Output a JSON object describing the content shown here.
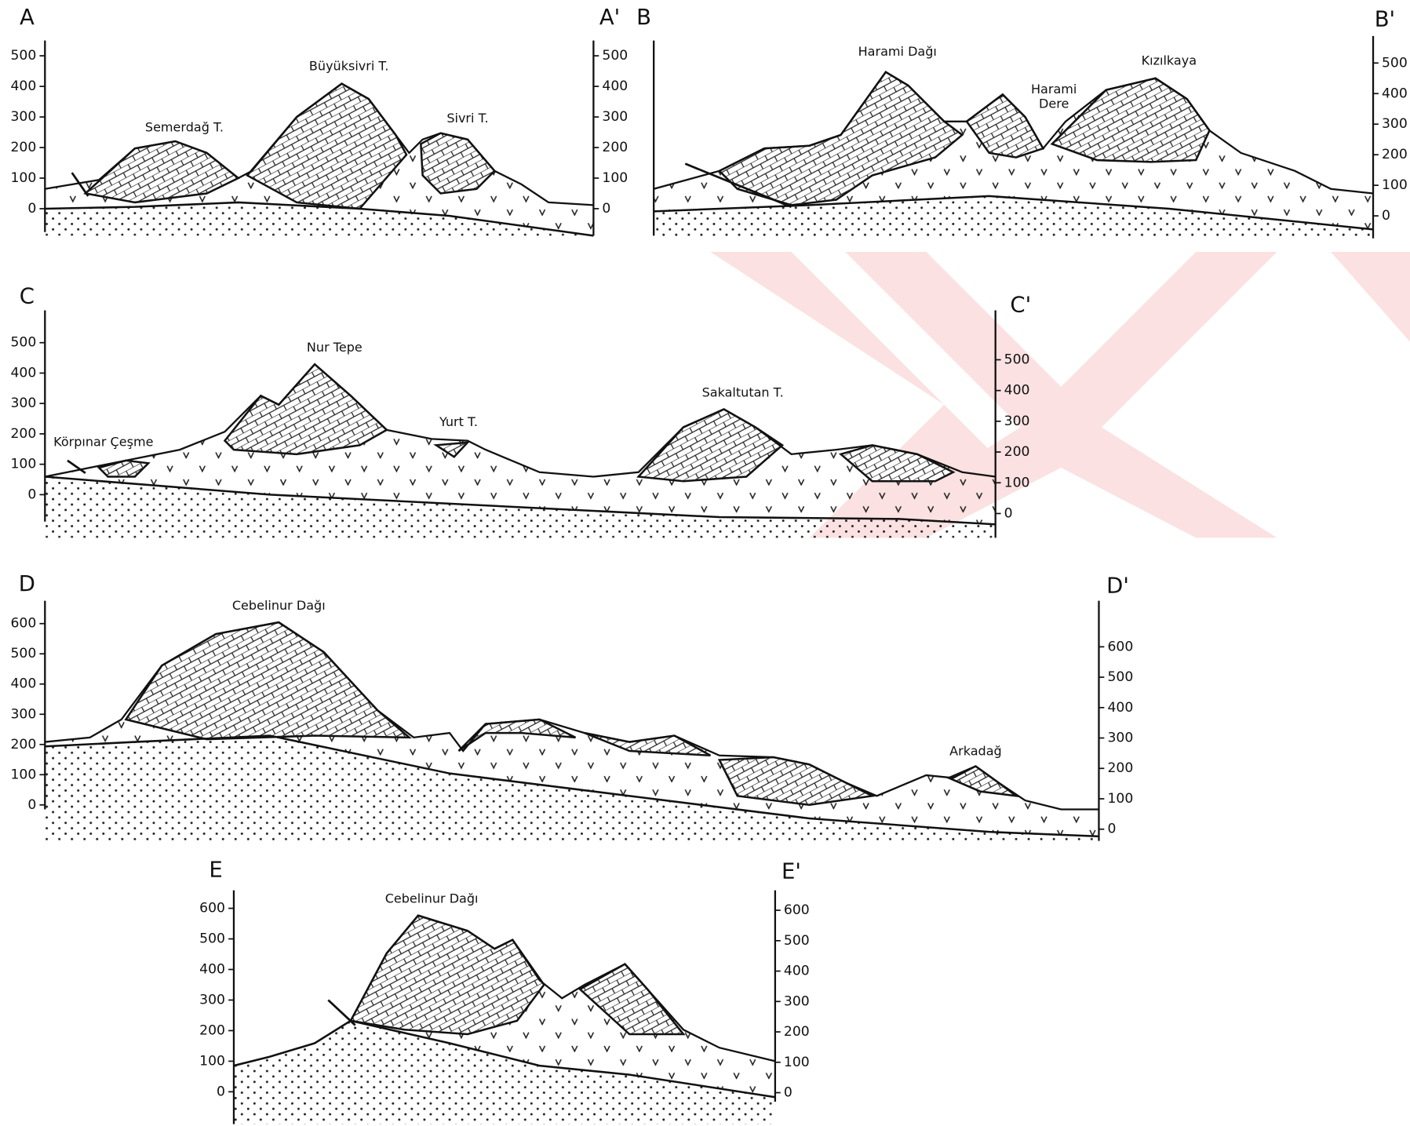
{
  "sections": [
    {
      "label_start": "A",
      "label_end": "A'",
      "left_ticks": [
        500,
        400,
        300,
        200,
        100,
        0
      ],
      "right_ticks": [
        500,
        400,
        300,
        200,
        100,
        0
      ],
      "names": [
        "Semerdağ T.",
        "Büyüksivri T.",
        "Sivri T."
      ]
    },
    {
      "label_start": "B",
      "label_end": "B'",
      "right_ticks": [
        500,
        400,
        300,
        200,
        100,
        0
      ],
      "names": [
        "Harami Dağı",
        "Harami",
        "Dere",
        "Kızılkaya"
      ]
    },
    {
      "label_start": "C",
      "label_end": "C'",
      "left_ticks": [
        500,
        400,
        300,
        200,
        100,
        0
      ],
      "right_ticks": [
        500,
        400,
        300,
        200,
        100,
        0
      ],
      "names": [
        "Nur Tepe",
        "Yurt T.",
        "Sakaltutan T.",
        "Körpınar Çeşme"
      ]
    },
    {
      "label_start": "D",
      "label_end": "D'",
      "left_ticks": [
        600,
        500,
        400,
        300,
        200,
        100,
        0
      ],
      "right_ticks": [
        600,
        500,
        400,
        300,
        200,
        100,
        0
      ],
      "names": [
        "Cebelinur Dağı",
        "Arkadağ"
      ]
    },
    {
      "label_start": "E",
      "label_end": "E'",
      "left_ticks": [
        600,
        500,
        400,
        300,
        200,
        100,
        0
      ],
      "right_ticks": [
        600,
        500,
        400,
        300,
        200,
        100,
        0
      ],
      "names": [
        "Cebelinur Dağı"
      ]
    }
  ]
}
